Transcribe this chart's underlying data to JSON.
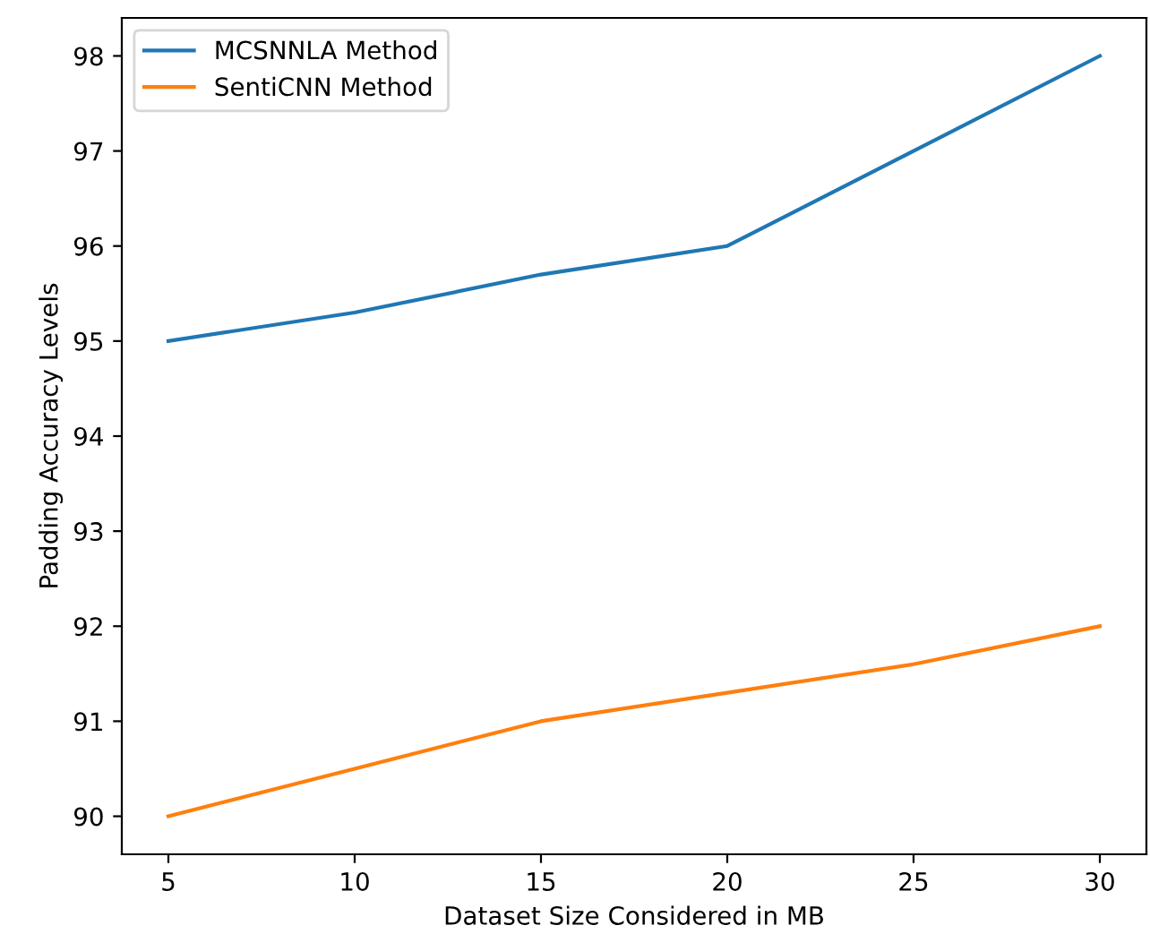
{
  "chart_data": {
    "type": "line",
    "xlabel": "Dataset Size Considered in MB",
    "ylabel": "Padding Accuracy Levels",
    "x": [
      5,
      10,
      15,
      20,
      25,
      30
    ],
    "series": [
      {
        "name": "MCSNNLA Method",
        "color": "#1f77b4",
        "values": [
          95,
          95.3,
          95.7,
          96,
          97,
          98
        ]
      },
      {
        "name": "SentiCNN Method",
        "color": "#ff7f0e",
        "values": [
          90,
          90.5,
          91,
          91.3,
          91.6,
          92
        ]
      }
    ],
    "xlim": [
      3.75,
      31.25
    ],
    "ylim": [
      89.6,
      98.4
    ],
    "xticks": [
      5,
      10,
      15,
      20,
      25,
      30
    ],
    "yticks": [
      90,
      91,
      92,
      93,
      94,
      95,
      96,
      97,
      98
    ],
    "legend": "top left",
    "grid": false,
    "marker": "none",
    "line_style": "solid"
  }
}
